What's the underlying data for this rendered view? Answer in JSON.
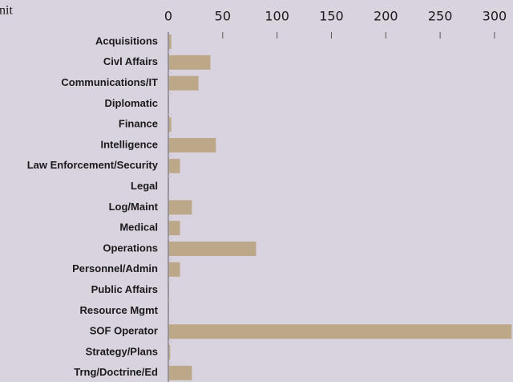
{
  "chart_data": {
    "type": "bar",
    "orientation": "horizontal",
    "title": "nit",
    "categories": [
      "Acquisitions",
      "Civl Affairs",
      "Communications/IT",
      "Diplomatic",
      "Finance",
      "Intelligence",
      "Law Enforcement/Security",
      "Legal",
      "Log/Maint",
      "Medical",
      "Operations",
      "Personnel/Admin",
      "Public Affairs",
      "Resource Mgmt",
      "SOF Operator",
      "Strategy/Plans",
      "Trng/Doctrine/Ed"
    ],
    "values": [
      2,
      38,
      27,
      0,
      2,
      43,
      10,
      0,
      21,
      10,
      80,
      10,
      0,
      0,
      315,
      1,
      21
    ],
    "color": "#bca888",
    "xlim": [
      0,
      317
    ],
    "xticks": [
      0,
      50,
      100,
      150,
      200,
      250,
      300
    ],
    "grid": false
  }
}
